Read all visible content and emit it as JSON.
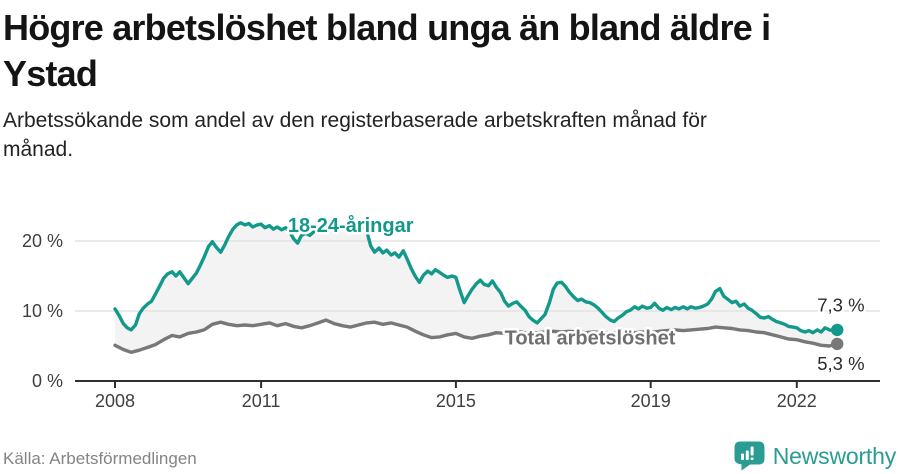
{
  "header": {
    "title_lines": [
      "Högre arbetslöshet bland unga än bland äldre i",
      "Ystad"
    ],
    "subtitle_lines": [
      "Arbetssökande som andel av den registerbaserade arbetskraften månad för",
      "månad."
    ]
  },
  "footer": {
    "source": "Källa: Arbetsförmedlingen",
    "brand": "Newsworthy"
  },
  "colors": {
    "teal": "#12998b",
    "gray": "#787878",
    "band_fill": "#f3f3f3",
    "gridline": "#e3e3e3",
    "axis": "#2f2f2f",
    "tick_text": "#3f3f3f",
    "end_label_text": "#2b2b2b",
    "brand_teal": "#2a9c92"
  },
  "chart_data": {
    "type": "line",
    "title": "Högre arbetslöshet bland unga än bland äldre i Ystad",
    "subtitle": "Arbetssökande som andel av den registerbaserade arbetskraften månad för månad.",
    "unit": "%",
    "grid": "horizontal-only",
    "legend_position": "inline-labels",
    "fill_between_series": "#f3f3f3",
    "x_axis": {
      "ticks": [
        2008,
        2011,
        2015,
        2019,
        2022
      ],
      "range_years": [
        2008.0,
        2022.83
      ]
    },
    "y_axis": {
      "tick_values": [
        0,
        10,
        20
      ],
      "tick_labels": [
        "0 %",
        "10 %",
        "20 %"
      ],
      "gridline_values": [
        10,
        20
      ],
      "ylim": [
        0,
        27
      ]
    },
    "series": [
      {
        "name": "18-24-åringar",
        "color": "#12998b",
        "end_label": "7,3 %",
        "end_value": 7.3,
        "label_at": [
          2011.55,
          21.3
        ],
        "end_label_at": [
          2022.42,
          9.9
        ],
        "points": [
          [
            2008.0,
            10.3
          ],
          [
            2008.08,
            9.4
          ],
          [
            2008.17,
            8.2
          ],
          [
            2008.25,
            7.6
          ],
          [
            2008.33,
            7.3
          ],
          [
            2008.42,
            8.0
          ],
          [
            2008.5,
            9.6
          ],
          [
            2008.58,
            10.4
          ],
          [
            2008.67,
            11.0
          ],
          [
            2008.75,
            11.4
          ],
          [
            2008.83,
            12.4
          ],
          [
            2008.92,
            13.6
          ],
          [
            2009.0,
            14.7
          ],
          [
            2009.08,
            15.3
          ],
          [
            2009.17,
            15.6
          ],
          [
            2009.25,
            15.0
          ],
          [
            2009.33,
            15.6
          ],
          [
            2009.42,
            14.7
          ],
          [
            2009.5,
            13.9
          ],
          [
            2009.58,
            14.6
          ],
          [
            2009.67,
            15.4
          ],
          [
            2009.75,
            16.5
          ],
          [
            2009.83,
            17.7
          ],
          [
            2009.92,
            19.2
          ],
          [
            2010.0,
            19.9
          ],
          [
            2010.08,
            19.1
          ],
          [
            2010.17,
            18.4
          ],
          [
            2010.25,
            19.4
          ],
          [
            2010.33,
            20.6
          ],
          [
            2010.42,
            21.7
          ],
          [
            2010.5,
            22.3
          ],
          [
            2010.58,
            22.6
          ],
          [
            2010.67,
            22.3
          ],
          [
            2010.75,
            22.5
          ],
          [
            2010.83,
            22.0
          ],
          [
            2010.92,
            22.3
          ],
          [
            2011.0,
            22.4
          ],
          [
            2011.08,
            21.9
          ],
          [
            2011.17,
            22.2
          ],
          [
            2011.25,
            21.7
          ],
          [
            2011.33,
            22.0
          ],
          [
            2011.42,
            21.6
          ],
          [
            2011.5,
            21.9
          ],
          [
            2011.58,
            21.4
          ],
          [
            2011.67,
            20.3
          ],
          [
            2011.75,
            19.7
          ],
          [
            2011.83,
            20.8
          ],
          [
            2011.92,
            21.1
          ],
          [
            2012.0,
            20.8
          ],
          [
            2012.08,
            21.3
          ],
          [
            2012.17,
            22.0
          ],
          [
            2012.25,
            21.6
          ],
          [
            2012.33,
            22.2
          ],
          [
            2012.42,
            22.4
          ],
          [
            2012.5,
            22.0
          ],
          [
            2012.58,
            22.3
          ],
          [
            2012.67,
            21.8
          ],
          [
            2012.75,
            22.1
          ],
          [
            2012.83,
            22.4
          ],
          [
            2012.92,
            22.2
          ],
          [
            2013.0,
            22.4
          ],
          [
            2013.08,
            22.0
          ],
          [
            2013.17,
            21.4
          ],
          [
            2013.25,
            19.3
          ],
          [
            2013.33,
            18.4
          ],
          [
            2013.42,
            19.0
          ],
          [
            2013.5,
            18.3
          ],
          [
            2013.58,
            18.7
          ],
          [
            2013.67,
            18.0
          ],
          [
            2013.75,
            18.3
          ],
          [
            2013.83,
            17.7
          ],
          [
            2013.92,
            18.6
          ],
          [
            2014.0,
            17.4
          ],
          [
            2014.08,
            16.1
          ],
          [
            2014.17,
            14.9
          ],
          [
            2014.25,
            14.1
          ],
          [
            2014.33,
            15.1
          ],
          [
            2014.42,
            15.7
          ],
          [
            2014.5,
            15.3
          ],
          [
            2014.58,
            15.9
          ],
          [
            2014.67,
            15.5
          ],
          [
            2014.75,
            15.1
          ],
          [
            2014.83,
            14.8
          ],
          [
            2014.92,
            15.0
          ],
          [
            2015.0,
            14.8
          ],
          [
            2015.08,
            13.0
          ],
          [
            2015.17,
            11.2
          ],
          [
            2015.25,
            12.2
          ],
          [
            2015.33,
            13.1
          ],
          [
            2015.42,
            13.9
          ],
          [
            2015.5,
            14.4
          ],
          [
            2015.58,
            13.8
          ],
          [
            2015.67,
            13.6
          ],
          [
            2015.75,
            14.3
          ],
          [
            2015.83,
            13.4
          ],
          [
            2015.92,
            12.6
          ],
          [
            2016.0,
            11.4
          ],
          [
            2016.08,
            10.7
          ],
          [
            2016.17,
            11.1
          ],
          [
            2016.25,
            11.3
          ],
          [
            2016.33,
            10.7
          ],
          [
            2016.42,
            10.1
          ],
          [
            2016.5,
            9.2
          ],
          [
            2016.58,
            8.7
          ],
          [
            2016.67,
            8.3
          ],
          [
            2016.75,
            8.9
          ],
          [
            2016.83,
            9.5
          ],
          [
            2016.92,
            11.2
          ],
          [
            2017.0,
            13.1
          ],
          [
            2017.08,
            14.0
          ],
          [
            2017.17,
            14.1
          ],
          [
            2017.25,
            13.5
          ],
          [
            2017.33,
            12.7
          ],
          [
            2017.42,
            12.0
          ],
          [
            2017.5,
            11.5
          ],
          [
            2017.58,
            11.7
          ],
          [
            2017.67,
            11.3
          ],
          [
            2017.75,
            11.2
          ],
          [
            2017.83,
            10.9
          ],
          [
            2017.92,
            10.4
          ],
          [
            2018.0,
            9.8
          ],
          [
            2018.08,
            9.2
          ],
          [
            2018.17,
            8.7
          ],
          [
            2018.25,
            8.5
          ],
          [
            2018.33,
            9.0
          ],
          [
            2018.42,
            9.4
          ],
          [
            2018.5,
            9.9
          ],
          [
            2018.58,
            10.1
          ],
          [
            2018.67,
            10.6
          ],
          [
            2018.75,
            10.3
          ],
          [
            2018.83,
            10.7
          ],
          [
            2018.92,
            10.4
          ],
          [
            2019.0,
            10.5
          ],
          [
            2019.08,
            11.1
          ],
          [
            2019.17,
            10.4
          ],
          [
            2019.25,
            10.1
          ],
          [
            2019.33,
            10.5
          ],
          [
            2019.42,
            10.2
          ],
          [
            2019.5,
            10.5
          ],
          [
            2019.58,
            10.3
          ],
          [
            2019.67,
            10.6
          ],
          [
            2019.75,
            10.3
          ],
          [
            2019.83,
            10.6
          ],
          [
            2019.92,
            10.4
          ],
          [
            2020.0,
            10.5
          ],
          [
            2020.08,
            10.7
          ],
          [
            2020.17,
            11.0
          ],
          [
            2020.25,
            11.7
          ],
          [
            2020.33,
            12.8
          ],
          [
            2020.42,
            13.2
          ],
          [
            2020.5,
            12.1
          ],
          [
            2020.58,
            11.7
          ],
          [
            2020.67,
            11.2
          ],
          [
            2020.75,
            11.4
          ],
          [
            2020.83,
            10.7
          ],
          [
            2020.92,
            11.0
          ],
          [
            2021.0,
            10.4
          ],
          [
            2021.08,
            10.1
          ],
          [
            2021.17,
            9.6
          ],
          [
            2021.25,
            9.1
          ],
          [
            2021.33,
            9.0
          ],
          [
            2021.42,
            9.2
          ],
          [
            2021.5,
            8.8
          ],
          [
            2021.58,
            8.5
          ],
          [
            2021.67,
            8.3
          ],
          [
            2021.75,
            8.1
          ],
          [
            2021.83,
            7.8
          ],
          [
            2021.92,
            7.7
          ],
          [
            2022.0,
            7.6
          ],
          [
            2022.08,
            7.2
          ],
          [
            2022.17,
            7.0
          ],
          [
            2022.25,
            7.2
          ],
          [
            2022.33,
            6.9
          ],
          [
            2022.42,
            7.3
          ],
          [
            2022.5,
            7.0
          ],
          [
            2022.58,
            7.6
          ],
          [
            2022.67,
            7.3
          ],
          [
            2022.75,
            7.2
          ],
          [
            2022.83,
            7.3
          ]
        ]
      },
      {
        "name": "Total arbetslöshet",
        "color": "#787878",
        "end_label": "5,3 %",
        "end_value": 5.3,
        "label_at": [
          2016.0,
          5.2
        ],
        "end_label_at": [
          2022.42,
          1.6
        ],
        "points": [
          [
            2008.0,
            5.1
          ],
          [
            2008.17,
            4.5
          ],
          [
            2008.33,
            4.1
          ],
          [
            2008.5,
            4.4
          ],
          [
            2008.67,
            4.8
          ],
          [
            2008.83,
            5.2
          ],
          [
            2009.0,
            5.9
          ],
          [
            2009.17,
            6.5
          ],
          [
            2009.33,
            6.3
          ],
          [
            2009.5,
            6.8
          ],
          [
            2009.67,
            7.0
          ],
          [
            2009.83,
            7.3
          ],
          [
            2010.0,
            8.1
          ],
          [
            2010.17,
            8.4
          ],
          [
            2010.33,
            8.1
          ],
          [
            2010.5,
            7.9
          ],
          [
            2010.67,
            8.0
          ],
          [
            2010.83,
            7.9
          ],
          [
            2011.0,
            8.1
          ],
          [
            2011.17,
            8.3
          ],
          [
            2011.33,
            7.9
          ],
          [
            2011.5,
            8.2
          ],
          [
            2011.67,
            7.8
          ],
          [
            2011.83,
            7.6
          ],
          [
            2012.0,
            7.9
          ],
          [
            2012.17,
            8.3
          ],
          [
            2012.33,
            8.7
          ],
          [
            2012.5,
            8.2
          ],
          [
            2012.67,
            7.9
          ],
          [
            2012.83,
            7.7
          ],
          [
            2013.0,
            8.0
          ],
          [
            2013.17,
            8.3
          ],
          [
            2013.33,
            8.4
          ],
          [
            2013.5,
            8.1
          ],
          [
            2013.67,
            8.3
          ],
          [
            2013.83,
            8.0
          ],
          [
            2014.0,
            7.7
          ],
          [
            2014.17,
            7.1
          ],
          [
            2014.33,
            6.6
          ],
          [
            2014.5,
            6.2
          ],
          [
            2014.67,
            6.3
          ],
          [
            2014.83,
            6.6
          ],
          [
            2015.0,
            6.8
          ],
          [
            2015.17,
            6.3
          ],
          [
            2015.33,
            6.1
          ],
          [
            2015.5,
            6.4
          ],
          [
            2015.67,
            6.6
          ],
          [
            2015.83,
            6.9
          ],
          [
            2016.0,
            6.8
          ],
          [
            2016.17,
            6.9
          ],
          [
            2016.33,
            7.0
          ],
          [
            2016.5,
            6.8
          ],
          [
            2016.67,
            6.9
          ],
          [
            2016.83,
            7.0
          ],
          [
            2017.0,
            7.1
          ],
          [
            2017.17,
            7.0
          ],
          [
            2017.33,
            7.1
          ],
          [
            2017.5,
            7.0
          ],
          [
            2017.67,
            6.9
          ],
          [
            2017.83,
            7.0
          ],
          [
            2018.0,
            6.9
          ],
          [
            2018.17,
            6.8
          ],
          [
            2018.33,
            6.9
          ],
          [
            2018.5,
            6.8
          ],
          [
            2018.67,
            6.9
          ],
          [
            2018.83,
            7.0
          ],
          [
            2019.0,
            6.9
          ],
          [
            2019.17,
            7.1
          ],
          [
            2019.33,
            7.2
          ],
          [
            2019.5,
            7.3
          ],
          [
            2019.67,
            7.2
          ],
          [
            2019.83,
            7.3
          ],
          [
            2020.0,
            7.4
          ],
          [
            2020.17,
            7.5
          ],
          [
            2020.33,
            7.7
          ],
          [
            2020.5,
            7.6
          ],
          [
            2020.67,
            7.5
          ],
          [
            2020.83,
            7.3
          ],
          [
            2021.0,
            7.2
          ],
          [
            2021.17,
            7.0
          ],
          [
            2021.33,
            6.9
          ],
          [
            2021.5,
            6.6
          ],
          [
            2021.67,
            6.3
          ],
          [
            2021.83,
            6.0
          ],
          [
            2022.0,
            5.9
          ],
          [
            2022.17,
            5.6
          ],
          [
            2022.33,
            5.4
          ],
          [
            2022.5,
            5.1
          ],
          [
            2022.67,
            5.0
          ],
          [
            2022.83,
            5.3
          ]
        ]
      }
    ]
  }
}
